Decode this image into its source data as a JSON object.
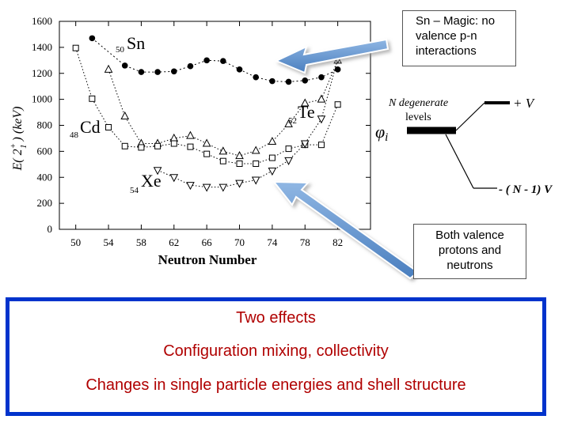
{
  "chart_data": {
    "type": "line",
    "xlabel": "Neutron Number",
    "ylabel_main": "E( 2",
    "ylabel_sup": "+",
    "ylabel_sub": "1",
    "ylabel_tail": " ) (keV)",
    "xlim": [
      48,
      86
    ],
    "ylim": [
      0,
      1600
    ],
    "xticks": [
      50,
      54,
      58,
      62,
      66,
      70,
      74,
      78,
      82
    ],
    "yticks": [
      0,
      200,
      400,
      600,
      800,
      1000,
      1200,
      1400,
      1600
    ],
    "grid": false,
    "series": [
      {
        "name": "Sn",
        "mass_sub": "50",
        "marker": "filled-circle",
        "x": [
          52,
          56,
          58,
          60,
          62,
          64,
          66,
          68,
          70,
          72,
          74,
          76,
          78,
          80,
          82
        ],
        "y": [
          1470,
          1260,
          1210,
          1210,
          1215,
          1255,
          1300,
          1295,
          1230,
          1170,
          1140,
          1135,
          1145,
          1170,
          1230
        ]
      },
      {
        "name": "Te",
        "mass_sub": "52",
        "marker": "open-triangle-up",
        "x": [
          54,
          56,
          58,
          60,
          62,
          64,
          66,
          68,
          70,
          72,
          74,
          76,
          78,
          80,
          82
        ],
        "y": [
          1230,
          870,
          660,
          660,
          700,
          720,
          660,
          600,
          565,
          605,
          675,
          810,
          970,
          1000,
          1300
        ]
      },
      {
        "name": "Cd",
        "mass_sub": "48",
        "marker": "open-square",
        "x": [
          50,
          52,
          54,
          56,
          58,
          60,
          62,
          64,
          66,
          68,
          70,
          72,
          74,
          76,
          78,
          80,
          82
        ],
        "y": [
          1395,
          1005,
          785,
          640,
          630,
          640,
          660,
          635,
          580,
          525,
          505,
          505,
          550,
          620,
          650,
          650,
          960
        ]
      },
      {
        "name": "Xe",
        "mass_sub": "54",
        "marker": "open-triangle-down",
        "x": [
          60,
          62,
          64,
          66,
          68,
          70,
          72,
          74,
          76,
          78,
          80,
          82
        ],
        "y": [
          455,
          400,
          340,
          325,
          325,
          355,
          380,
          450,
          530,
          660,
          850,
          1310
        ]
      }
    ]
  },
  "diagram": {
    "n_degenerate_line1": "N degenerate",
    "n_degenerate_line2": "levels",
    "phi": "φ",
    "phi_sub": "i",
    "plus_v": "+ V",
    "minus_v": "- ( N - 1) V"
  },
  "callouts": {
    "sn_magic": [
      "Sn – Magic: no",
      "valence p-n",
      "interactions"
    ],
    "both_valence": [
      "Both valence",
      "protons and",
      "neutrons"
    ]
  },
  "effects": {
    "title": "Two effects",
    "line1": "Configuration mixing, collectivity",
    "line2": "Changes in single particle energies and shell structure"
  },
  "colors": {
    "arrow_fill": "#5b8fc9",
    "arrow_edge": "#ffffff",
    "box_border": "#0033cc",
    "effects_text": "#b00000"
  }
}
